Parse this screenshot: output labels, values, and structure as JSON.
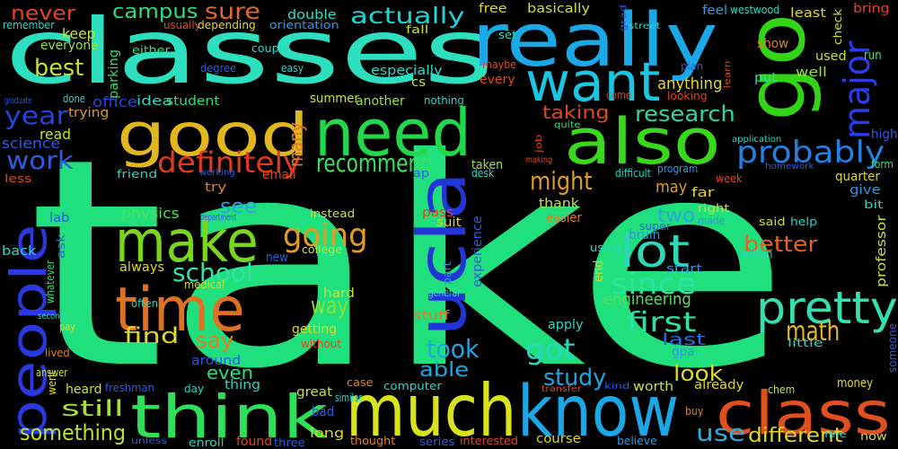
{
  "words": [
    {
      "t": "take",
      "c": "#1fe07d"
    },
    {
      "t": "classes",
      "c": "#2ddfbf"
    },
    {
      "t": "much",
      "c": "#d8e31c"
    },
    {
      "t": "know",
      "c": "#1ba6e6"
    },
    {
      "t": "think",
      "c": "#2de05a"
    },
    {
      "t": "class",
      "c": "#e0501e"
    },
    {
      "t": "really",
      "c": "#1ba8e6"
    },
    {
      "t": "go",
      "c": "#32d416"
    },
    {
      "t": "need",
      "c": "#22d84a"
    },
    {
      "t": "good",
      "c": "#e0b81e"
    },
    {
      "t": "also",
      "c": "#3ad81c"
    },
    {
      "t": "want",
      "c": "#1bc6e3"
    },
    {
      "t": "ucla",
      "c": "#2236d8"
    },
    {
      "t": "people",
      "c": "#2a38e0"
    },
    {
      "t": "time",
      "c": "#e07122"
    },
    {
      "t": "make",
      "c": "#7ad61a"
    },
    {
      "t": "pretty",
      "c": "#34dfb0"
    },
    {
      "t": "lot",
      "c": "#2ed7b5"
    },
    {
      "t": "major",
      "c": "#2a3ce4"
    },
    {
      "t": "definitely",
      "c": "#e4391e"
    },
    {
      "t": "probably",
      "c": "#2280e2"
    },
    {
      "t": "going",
      "c": "#e29c22"
    },
    {
      "t": "school",
      "c": "#34e0a6"
    },
    {
      "t": "since",
      "c": "#2ee1a0"
    },
    {
      "t": "recommend",
      "c": "#38e060"
    },
    {
      "t": "research",
      "c": "#2fd6a8"
    },
    {
      "t": "might",
      "c": "#e29a22"
    },
    {
      "t": "work",
      "c": "#2a5de0"
    },
    {
      "t": "year",
      "c": "#2346da"
    },
    {
      "t": "best",
      "c": "#c4e236"
    },
    {
      "t": "first",
      "c": "#2fe0a6"
    },
    {
      "t": "got",
      "c": "#2ad6c2"
    },
    {
      "t": "took",
      "c": "#1ba8e6"
    },
    {
      "t": "math",
      "c": "#e2b822"
    },
    {
      "t": "better",
      "c": "#e26322"
    },
    {
      "t": "way",
      "c": "#8be22e"
    },
    {
      "t": "find",
      "c": "#e0d820"
    },
    {
      "t": "say",
      "c": "#e07f22"
    },
    {
      "t": "something",
      "c": "#b8e236"
    },
    {
      "t": "still",
      "c": "#a8e03a"
    },
    {
      "t": "use",
      "c": "#28b0e0"
    },
    {
      "t": "different",
      "c": "#e0d822"
    },
    {
      "t": "study",
      "c": "#1ba6e6"
    },
    {
      "t": "look",
      "c": "#e0d822"
    },
    {
      "t": "actually",
      "c": "#1bd6d6"
    },
    {
      "t": "sure",
      "c": "#e06a22"
    },
    {
      "t": "campus",
      "c": "#2ae07a"
    },
    {
      "t": "never",
      "c": "#e0481e"
    },
    {
      "t": "many",
      "c": "#e07a22"
    },
    {
      "t": "able",
      "c": "#1ba8e6"
    },
    {
      "t": "see",
      "c": "#28a8e0"
    },
    {
      "t": "two",
      "c": "#28a8e0"
    },
    {
      "t": "even",
      "c": "#2ae07a"
    },
    {
      "t": "last",
      "c": "#2a6be0"
    },
    {
      "t": "engineering",
      "c": "#4fe060"
    },
    {
      "t": "taking",
      "c": "#e0481e"
    },
    {
      "t": "anything",
      "c": "#e0d820"
    },
    {
      "t": "may",
      "c": "#e09a22"
    },
    {
      "t": "physics",
      "c": "#4fe060"
    },
    {
      "t": "science",
      "c": "#2a5de0"
    },
    {
      "t": "read",
      "c": "#c4e236"
    },
    {
      "t": "trying",
      "c": "#e09a22"
    },
    {
      "t": "office",
      "c": "#2846d8"
    },
    {
      "t": "idea",
      "c": "#2fd6c2"
    },
    {
      "t": "student",
      "c": "#2ae07a"
    },
    {
      "t": "keep",
      "c": "#c4e236"
    },
    {
      "t": "everyone",
      "c": "#9ae236"
    },
    {
      "t": "parking",
      "c": "#2ae07a"
    },
    {
      "t": "especially",
      "c": "#2fd6c2"
    },
    {
      "t": "summer",
      "c": "#c4e236"
    },
    {
      "t": "another",
      "c": "#9ae236"
    },
    {
      "t": "remember",
      "c": "#2ad6c2"
    },
    {
      "t": "double",
      "c": "#2ae0c2"
    },
    {
      "t": "orientation",
      "c": "#2a9ae0"
    },
    {
      "t": "usually",
      "c": "#e0481e"
    },
    {
      "t": "depending",
      "c": "#e0d820"
    },
    {
      "t": "either",
      "c": "#2ae07a"
    },
    {
      "t": "degree",
      "c": "#2a5de0"
    },
    {
      "t": "easy",
      "c": "#2ad6c2"
    },
    {
      "t": "couple",
      "c": "#2ad6c2"
    },
    {
      "t": "fall",
      "c": "#c4e236"
    },
    {
      "t": "cs",
      "c": "#c4e236"
    },
    {
      "t": "every",
      "c": "#e0481e"
    },
    {
      "t": "maybe",
      "c": "#e0481e"
    },
    {
      "t": "set",
      "c": "#2ad6c2"
    },
    {
      "t": "free",
      "c": "#e0d820"
    },
    {
      "t": "basically",
      "c": "#c4e236"
    },
    {
      "t": "feel",
      "c": "#2a9ae0"
    },
    {
      "t": "westwood",
      "c": "#2ad6c2"
    },
    {
      "t": "least",
      "c": "#e0d820"
    },
    {
      "t": "bring",
      "c": "#e0481e"
    },
    {
      "t": "check",
      "c": "#c4e236"
    },
    {
      "t": "run",
      "c": "#4fe060"
    },
    {
      "t": "plan",
      "c": "#2a5de0"
    },
    {
      "t": "show",
      "c": "#e07f22"
    },
    {
      "t": "put",
      "c": "#2ad6c2"
    },
    {
      "t": "well",
      "c": "#9ae236"
    },
    {
      "t": "used",
      "c": "#c4e236"
    },
    {
      "t": "learn",
      "c": "#e0481e"
    },
    {
      "t": "come",
      "c": "#e0481e"
    },
    {
      "t": "looking",
      "c": "#e0481e"
    },
    {
      "t": "street",
      "c": "#2ad6c2"
    },
    {
      "t": "grad",
      "c": "#2a5de0"
    },
    {
      "t": "quite",
      "c": "#2ae07a"
    },
    {
      "t": "job",
      "c": "#e0481e"
    },
    {
      "t": "making",
      "c": "#e0481e"
    },
    {
      "t": "application",
      "c": "#2ad6c2"
    },
    {
      "t": "homework",
      "c": "#2a5de0"
    },
    {
      "t": "high",
      "c": "#2a5de0"
    },
    {
      "t": "form",
      "c": "#2ae07a"
    },
    {
      "t": "quarter",
      "c": "#e0d820"
    },
    {
      "t": "give",
      "c": "#2a9ae0"
    },
    {
      "t": "bit",
      "c": "#2ad6c2"
    },
    {
      "t": "far",
      "c": "#e0d820"
    },
    {
      "t": "week",
      "c": "#e0481e"
    },
    {
      "t": "program",
      "c": "#2a9ae0"
    },
    {
      "t": "difficult",
      "c": "#2ad6c2"
    },
    {
      "t": "taken",
      "c": "#9ae236"
    },
    {
      "t": "desk",
      "c": "#2ad6c2"
    },
    {
      "t": "ap",
      "c": "#2a5de0"
    },
    {
      "t": "email",
      "c": "#e0481e"
    },
    {
      "t": "friend",
      "c": "#2ad6c2"
    },
    {
      "t": "working",
      "c": "#2a5de0"
    },
    {
      "t": "less",
      "c": "#e0481e"
    },
    {
      "t": "done",
      "c": "#2ad6c2"
    },
    {
      "t": "nothing",
      "c": "#2ad6c2"
    },
    {
      "t": "graduate",
      "c": "#2a5de0"
    },
    {
      "t": "try",
      "c": "#e07f22"
    },
    {
      "t": "lab",
      "c": "#2a5de0"
    },
    {
      "t": "department",
      "c": "#2a5de0"
    },
    {
      "t": "instead",
      "c": "#c4e236"
    },
    {
      "t": "pass",
      "c": "#e0481e"
    },
    {
      "t": "suit",
      "c": "#e0d820"
    },
    {
      "t": "college",
      "c": "#c4e236"
    },
    {
      "t": "easier",
      "c": "#e07f22"
    },
    {
      "t": "thank",
      "c": "#c4e236"
    },
    {
      "t": "super",
      "c": "#2a5de0"
    },
    {
      "t": "bruin",
      "c": "#2a9ae0"
    },
    {
      "t": "right",
      "c": "#c4e236"
    },
    {
      "t": "made",
      "c": "#2a9ae0"
    },
    {
      "t": "said",
      "c": "#c4e236"
    },
    {
      "t": "help",
      "c": "#2ad6c2"
    },
    {
      "t": "within",
      "c": "#2ad6c2"
    },
    {
      "t": "start",
      "c": "#2a9ae0"
    },
    {
      "t": "using",
      "c": "#2ad6c2"
    },
    {
      "t": "end",
      "c": "#c4e236"
    },
    {
      "t": "professor",
      "c": "#c4e236"
    },
    {
      "t": "ask",
      "c": "#2a5de0"
    },
    {
      "t": "back",
      "c": "#2ad6c2"
    },
    {
      "t": "whatever",
      "c": "#2ae07a"
    },
    {
      "t": "always",
      "c": "#e0d820"
    },
    {
      "t": "medical",
      "c": "#c4e236"
    },
    {
      "t": "often",
      "c": "#2ad6c2"
    },
    {
      "t": "new",
      "c": "#2a5de0"
    },
    {
      "t": "part",
      "c": "#2a9ae0"
    },
    {
      "t": "experience",
      "c": "#2a5de0"
    },
    {
      "t": "general",
      "c": "#2ad6c2"
    },
    {
      "t": "hard",
      "c": "#c4e236"
    },
    {
      "t": "getting",
      "c": "#e0d820"
    },
    {
      "t": "without",
      "c": "#e0481e"
    },
    {
      "t": "stuff",
      "c": "#e07f22"
    },
    {
      "t": "apply",
      "c": "#2ad6c2"
    },
    {
      "t": "second",
      "c": "#2ad6c2"
    },
    {
      "t": "pay",
      "c": "#e0d820"
    },
    {
      "t": "lived",
      "c": "#e07f22"
    },
    {
      "t": "answer",
      "c": "#c4e236"
    },
    {
      "t": "went",
      "c": "#e0d820"
    },
    {
      "t": "heard",
      "c": "#c4e236"
    },
    {
      "t": "freshman",
      "c": "#2a5de0"
    },
    {
      "t": "around",
      "c": "#2a5de0"
    },
    {
      "t": "thing",
      "c": "#2ad6c2"
    },
    {
      "t": "day",
      "c": "#2ad6c2"
    },
    {
      "t": "great",
      "c": "#c4e236"
    },
    {
      "t": "similar",
      "c": "#2ad6c2"
    },
    {
      "t": "bad",
      "c": "#2a5de0"
    },
    {
      "t": "case",
      "c": "#e07f22"
    },
    {
      "t": "computer",
      "c": "#2ad6c2"
    },
    {
      "t": "transfer",
      "c": "#e0481e"
    },
    {
      "t": "kind",
      "c": "#2a5de0"
    },
    {
      "t": "gpa",
      "c": "#2a9ae0"
    },
    {
      "t": "worth",
      "c": "#c4e236"
    },
    {
      "t": "already",
      "c": "#e0d820"
    },
    {
      "t": "chem",
      "c": "#c4e236"
    },
    {
      "t": "money",
      "c": "#e0d820"
    },
    {
      "t": "little",
      "c": "#2ad6c2"
    },
    {
      "t": "someone",
      "c": "#2a5de0"
    },
    {
      "t": "now",
      "c": "#e0d820"
    },
    {
      "t": "fine",
      "c": "#2ad6c2"
    },
    {
      "t": "buy",
      "c": "#e07f22"
    },
    {
      "t": "believe",
      "c": "#2a9ae0"
    },
    {
      "t": "course",
      "c": "#e0d820"
    },
    {
      "t": "series",
      "c": "#2a5de0"
    },
    {
      "t": "interested",
      "c": "#e0481e"
    },
    {
      "t": "thought",
      "c": "#e07f22"
    },
    {
      "t": "long",
      "c": "#e0d820"
    },
    {
      "t": "three",
      "c": "#2a5de0"
    },
    {
      "t": "found",
      "c": "#e0481e"
    },
    {
      "t": "enroll",
      "c": "#2ad6c2"
    },
    {
      "t": "unless",
      "c": "#2a5de0"
    }
  ]
}
